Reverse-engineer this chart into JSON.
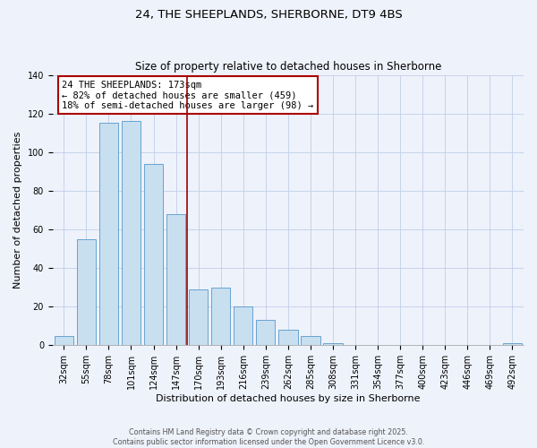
{
  "title": "24, THE SHEEPLANDS, SHERBORNE, DT9 4BS",
  "subtitle": "Size of property relative to detached houses in Sherborne",
  "xlabel": "Distribution of detached houses by size in Sherborne",
  "ylabel": "Number of detached properties",
  "bar_labels": [
    "32sqm",
    "55sqm",
    "78sqm",
    "101sqm",
    "124sqm",
    "147sqm",
    "170sqm",
    "193sqm",
    "216sqm",
    "239sqm",
    "262sqm",
    "285sqm",
    "308sqm",
    "331sqm",
    "354sqm",
    "377sqm",
    "400sqm",
    "423sqm",
    "446sqm",
    "469sqm",
    "492sqm"
  ],
  "bar_values": [
    5,
    55,
    115,
    116,
    94,
    68,
    29,
    30,
    20,
    13,
    8,
    5,
    1,
    0,
    0,
    0,
    0,
    0,
    0,
    0,
    1
  ],
  "bar_color": "#c8dff0",
  "bar_edge_color": "#5599cc",
  "property_line_index": 6,
  "ylim": [
    0,
    140
  ],
  "yticks": [
    0,
    20,
    40,
    60,
    80,
    100,
    120,
    140
  ],
  "annotation_title": "24 THE SHEEPLANDS: 173sqm",
  "annotation_line1": "← 82% of detached houses are smaller (459)",
  "annotation_line2": "18% of semi-detached houses are larger (98) →",
  "footer_line1": "Contains HM Land Registry data © Crown copyright and database right 2025.",
  "footer_line2": "Contains public sector information licensed under the Open Government Licence v3.0.",
  "bg_color": "#eef2fb",
  "grid_color": "#c0cfe8",
  "annotation_box_color": "#ffffff",
  "annotation_box_edge": "#aa0000",
  "line_color": "#990000",
  "title_fontsize": 9.5,
  "subtitle_fontsize": 8.5,
  "axis_label_fontsize": 8,
  "tick_fontsize": 7,
  "annotation_fontsize": 7.5,
  "footer_fontsize": 5.8
}
